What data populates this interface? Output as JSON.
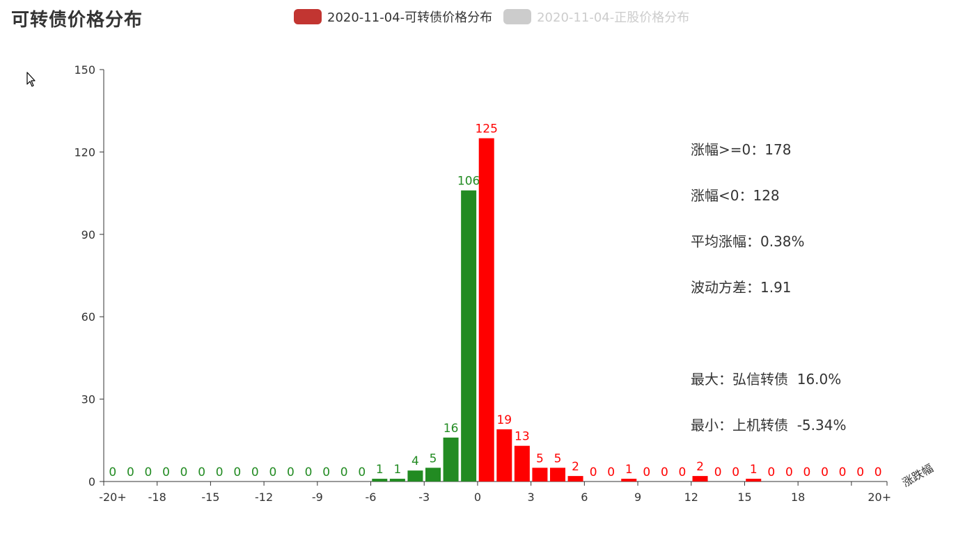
{
  "title": "可转债价格分布",
  "legend": [
    {
      "label": "2020-11-04-可转债价格分布",
      "color": "#c23531",
      "active": true
    },
    {
      "label": "2020-11-04-正股价格分布",
      "color": "#cccccc",
      "active": false
    }
  ],
  "stats": {
    "up_count": "涨幅>=0：178",
    "down_count": "涨幅<0：128",
    "avg_change": "平均涨幅：0.38%",
    "volatility": "波动方差：1.91",
    "max_item": "最大：弘信转债  16.0%",
    "min_item": "最小：上机转债  -5.34%"
  },
  "colors": {
    "negative": "#228b22",
    "positive": "#ff0000",
    "axis": "#333333"
  },
  "chart_data": {
    "type": "bar",
    "xlabel": "涨跌幅",
    "ylabel": "",
    "ylim": [
      0,
      150
    ],
    "yticks": [
      0,
      30,
      60,
      90,
      120,
      150
    ],
    "x_tick_labels": [
      "-20+",
      "-18",
      "-15",
      "-12",
      "-9",
      "-6",
      "-3",
      "0",
      "3",
      "6",
      "9",
      "12",
      "15",
      "18",
      "20+"
    ],
    "series": [
      {
        "values": [
          0,
          0,
          0,
          0,
          0,
          0,
          0,
          0,
          0,
          0,
          0,
          0,
          0,
          0,
          0,
          1,
          1,
          4,
          5,
          16,
          106,
          125,
          19,
          13,
          5,
          5,
          2,
          0,
          0,
          1,
          0,
          0,
          0,
          2,
          0,
          0,
          1,
          0,
          0,
          0,
          0,
          0,
          0,
          0
        ]
      }
    ],
    "negative_count": 21,
    "grid": false
  }
}
